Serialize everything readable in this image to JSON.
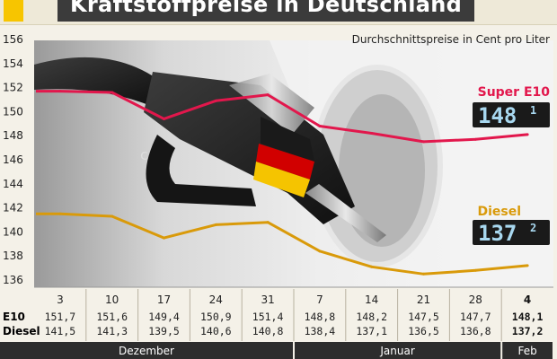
{
  "title": "Kraftstoffpreise in Deutschland",
  "subtitle": "Durchschnittspreise in Cent pro Liter",
  "colors": {
    "e10": "#e2174c",
    "diesel": "#d99a0a",
    "title_bg": "#3b3b3b",
    "accent": "#f7c500"
  },
  "displays": {
    "e10_main": "148",
    "e10_decimal": "1",
    "diesel_main": "137",
    "diesel_decimal": "2"
  },
  "months": [
    {
      "label": "Dezember",
      "categories": 5
    },
    {
      "label": "Januar",
      "categories": 4
    },
    {
      "label": "Feb",
      "categories": 1
    }
  ],
  "chart_data": {
    "type": "line",
    "title": "Kraftstoffpreise in Deutschland",
    "subtitle": "Durchschnittspreise in Cent pro Liter",
    "categories": [
      "3",
      "10",
      "17",
      "24",
      "31",
      "7",
      "14",
      "21",
      "28",
      "4"
    ],
    "yticks": [
      "136",
      "138",
      "140",
      "142",
      "144",
      "146",
      "148",
      "150",
      "152",
      "154",
      "156"
    ],
    "ylim": [
      136,
      156
    ],
    "grid": false,
    "row_labels": [
      "E10",
      "Diesel"
    ],
    "series": [
      {
        "name": "Super E10",
        "values": [
          151.7,
          151.6,
          149.4,
          150.9,
          151.4,
          148.8,
          148.2,
          147.5,
          147.7,
          148.1
        ],
        "labels": [
          "151,7",
          "151,6",
          "149,4",
          "150,9",
          "151,4",
          "148,8",
          "148,2",
          "147,5",
          "147,7",
          "148,1"
        ]
      },
      {
        "name": "Diesel",
        "values": [
          141.5,
          141.3,
          139.5,
          140.6,
          140.8,
          138.4,
          137.1,
          136.5,
          136.8,
          137.2
        ],
        "labels": [
          "141,5",
          "141,3",
          "139,5",
          "140,6",
          "140,8",
          "138,4",
          "137,1",
          "136,5",
          "136,8",
          "137,2"
        ]
      }
    ]
  }
}
